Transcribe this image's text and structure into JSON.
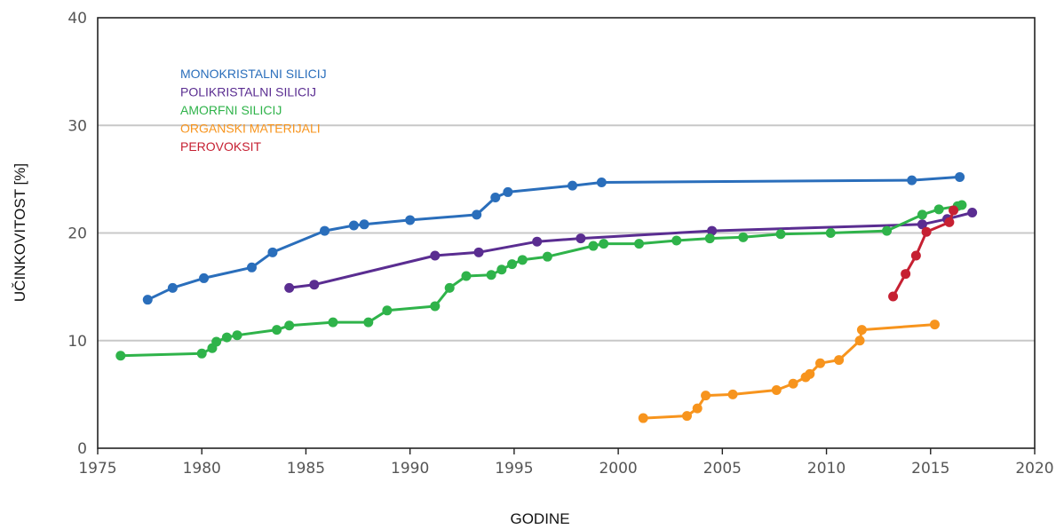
{
  "chart_data": {
    "type": "line",
    "xlabel": "GODINE",
    "ylabel": "UČINKOVITOST [%]",
    "xlim": [
      1975,
      2020
    ],
    "ylim": [
      0,
      40
    ],
    "xticks": [
      1975,
      1980,
      1985,
      1990,
      1995,
      2000,
      2005,
      2010,
      2015,
      2020
    ],
    "yticks": [
      0,
      10,
      20,
      30,
      40
    ],
    "grid": "horizontal",
    "legend_position": "top-left",
    "series": [
      {
        "name": "MONOKRISTALNI SILICIJ",
        "color": "#2a6ebb",
        "points": [
          [
            1977.4,
            13.8
          ],
          [
            1978.6,
            14.9
          ],
          [
            1980.1,
            15.8
          ],
          [
            1982.4,
            16.8
          ],
          [
            1983.4,
            18.2
          ],
          [
            1985.9,
            20.2
          ],
          [
            1987.3,
            20.7
          ],
          [
            1987.8,
            20.8
          ],
          [
            1990.0,
            21.2
          ],
          [
            1993.2,
            21.7
          ],
          [
            1994.1,
            23.3
          ],
          [
            1994.7,
            23.8
          ],
          [
            1997.8,
            24.4
          ],
          [
            1999.2,
            24.7
          ],
          [
            2014.1,
            24.9
          ],
          [
            2016.4,
            25.2
          ]
        ]
      },
      {
        "name": "POLIKRISTALNI SILICIJ",
        "color": "#5a2d91",
        "points": [
          [
            1984.2,
            14.9
          ],
          [
            1985.4,
            15.2
          ],
          [
            1991.2,
            17.9
          ],
          [
            1993.3,
            18.2
          ],
          [
            1996.1,
            19.2
          ],
          [
            1998.2,
            19.5
          ],
          [
            2004.5,
            20.2
          ],
          [
            2014.6,
            20.8
          ],
          [
            2015.8,
            21.3
          ],
          [
            2017.0,
            21.9
          ]
        ]
      },
      {
        "name": "AMORFNI SILICIJ",
        "color": "#2fb34a",
        "points": [
          [
            1976.1,
            8.6
          ],
          [
            1980.0,
            8.8
          ],
          [
            1980.5,
            9.3
          ],
          [
            1980.7,
            9.9
          ],
          [
            1981.2,
            10.3
          ],
          [
            1981.7,
            10.5
          ],
          [
            1983.6,
            11.0
          ],
          [
            1984.2,
            11.4
          ],
          [
            1986.3,
            11.7
          ],
          [
            1988.0,
            11.7
          ],
          [
            1988.9,
            12.8
          ],
          [
            1991.2,
            13.2
          ],
          [
            1991.9,
            14.9
          ],
          [
            1992.7,
            16.0
          ],
          [
            1993.9,
            16.1
          ],
          [
            1994.4,
            16.6
          ],
          [
            1994.9,
            17.1
          ],
          [
            1995.4,
            17.5
          ],
          [
            1996.6,
            17.8
          ],
          [
            1998.8,
            18.8
          ],
          [
            1999.3,
            19.0
          ],
          [
            2001.0,
            19.0
          ],
          [
            2002.8,
            19.3
          ],
          [
            2004.4,
            19.5
          ],
          [
            2006.0,
            19.6
          ],
          [
            2007.8,
            19.9
          ],
          [
            2010.2,
            20.0
          ],
          [
            2012.9,
            20.2
          ],
          [
            2014.6,
            21.7
          ],
          [
            2015.4,
            22.2
          ],
          [
            2016.3,
            22.5
          ],
          [
            2016.5,
            22.6
          ]
        ]
      },
      {
        "name": "ORGANSKI MATERIJALI",
        "color": "#f7941d",
        "points": [
          [
            2001.2,
            2.8
          ],
          [
            2003.3,
            3.0
          ],
          [
            2003.8,
            3.7
          ],
          [
            2004.2,
            4.9
          ],
          [
            2005.5,
            5.0
          ],
          [
            2007.6,
            5.4
          ],
          [
            2008.4,
            6.0
          ],
          [
            2009.0,
            6.6
          ],
          [
            2009.2,
            6.9
          ],
          [
            2009.7,
            7.9
          ],
          [
            2010.6,
            8.2
          ],
          [
            2011.6,
            10.0
          ],
          [
            2011.7,
            11.0
          ],
          [
            2015.2,
            11.5
          ]
        ]
      },
      {
        "name": "PEROVOKSIT",
        "color": "#c62032",
        "points": [
          [
            2013.2,
            14.1
          ],
          [
            2013.8,
            16.2
          ],
          [
            2014.3,
            17.9
          ],
          [
            2014.8,
            20.1
          ],
          [
            2015.9,
            21.0
          ],
          [
            2016.1,
            22.1
          ]
        ]
      }
    ]
  }
}
